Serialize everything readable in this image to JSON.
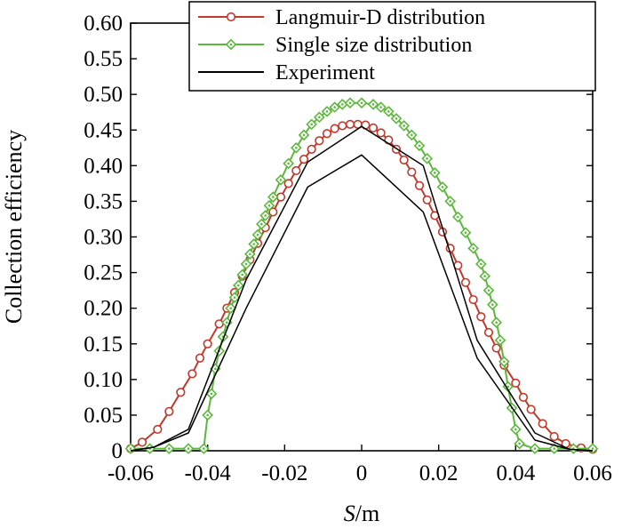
{
  "chart_data": {
    "type": "line",
    "title": "",
    "xlabel_italic": "S",
    "xlabel_unit": "/m",
    "ylabel": "Collection efficiency",
    "xlim": [
      -0.06,
      0.06
    ],
    "ylim": [
      0,
      0.6
    ],
    "x_ticks": [
      -0.06,
      -0.04,
      -0.02,
      0,
      0.02,
      0.04,
      0.06
    ],
    "x_tick_labels": [
      "-0.06",
      "-0.04",
      "-0.02",
      "0",
      "0.02",
      "0.04",
      "0.06"
    ],
    "y_ticks": [
      0,
      0.05,
      0.1,
      0.15,
      0.2,
      0.25,
      0.3,
      0.35,
      0.4,
      0.45,
      0.5,
      0.55,
      0.6
    ],
    "y_tick_labels": [
      "0",
      "0.05",
      "0.10",
      "0.15",
      "0.20",
      "0.25",
      "0.30",
      "0.35",
      "0.40",
      "0.45",
      "0.50",
      "0.55",
      "0.60"
    ],
    "grid": false,
    "legend_position": "top-right",
    "series": [
      {
        "name": "Langmuir-D distribution",
        "color": "#c0392b",
        "marker": "circle",
        "x": [
          -0.06,
          -0.057,
          -0.053,
          -0.05,
          -0.047,
          -0.044,
          -0.042,
          -0.04,
          -0.037,
          -0.035,
          -0.033,
          -0.031,
          -0.029,
          -0.027,
          -0.025,
          -0.023,
          -0.021,
          -0.019,
          -0.017,
          -0.015,
          -0.013,
          -0.011,
          -0.009,
          -0.007,
          -0.005,
          -0.003,
          -0.001,
          0.001,
          0.003,
          0.005,
          0.007,
          0.009,
          0.011,
          0.013,
          0.015,
          0.017,
          0.019,
          0.021,
          0.023,
          0.025,
          0.027,
          0.029,
          0.031,
          0.033,
          0.035,
          0.037,
          0.04,
          0.042,
          0.044,
          0.047,
          0.05,
          0.053,
          0.057,
          0.06
        ],
        "y": [
          0.003,
          0.012,
          0.03,
          0.055,
          0.082,
          0.108,
          0.13,
          0.15,
          0.178,
          0.2,
          0.222,
          0.245,
          0.268,
          0.291,
          0.313,
          0.335,
          0.356,
          0.375,
          0.393,
          0.409,
          0.423,
          0.435,
          0.445,
          0.452,
          0.456,
          0.458,
          0.458,
          0.457,
          0.453,
          0.446,
          0.436,
          0.423,
          0.408,
          0.391,
          0.372,
          0.352,
          0.33,
          0.307,
          0.284,
          0.26,
          0.236,
          0.212,
          0.188,
          0.166,
          0.144,
          0.12,
          0.095,
          0.075,
          0.058,
          0.038,
          0.02,
          0.01,
          0.004,
          0.002
        ]
      },
      {
        "name": "Single size distribution",
        "color": "#5cb83c",
        "marker": "diamond",
        "x": [
          -0.06,
          -0.055,
          -0.05,
          -0.045,
          -0.041,
          -0.04,
          -0.039,
          -0.038,
          -0.037,
          -0.036,
          -0.035,
          -0.034,
          -0.033,
          -0.032,
          -0.031,
          -0.03,
          -0.029,
          -0.028,
          -0.027,
          -0.026,
          -0.025,
          -0.024,
          -0.023,
          -0.021,
          -0.019,
          -0.017,
          -0.015,
          -0.013,
          -0.011,
          -0.009,
          -0.007,
          -0.005,
          -0.003,
          0.0,
          0.003,
          0.005,
          0.007,
          0.009,
          0.011,
          0.013,
          0.015,
          0.017,
          0.019,
          0.021,
          0.023,
          0.025,
          0.027,
          0.029,
          0.031,
          0.032,
          0.033,
          0.034,
          0.035,
          0.036,
          0.037,
          0.038,
          0.039,
          0.04,
          0.041,
          0.045,
          0.05,
          0.055,
          0.06
        ],
        "y": [
          0.003,
          0.003,
          0.003,
          0.003,
          0.003,
          0.05,
          0.08,
          0.115,
          0.14,
          0.16,
          0.18,
          0.2,
          0.215,
          0.232,
          0.247,
          0.262,
          0.276,
          0.29,
          0.303,
          0.318,
          0.33,
          0.344,
          0.356,
          0.38,
          0.403,
          0.425,
          0.443,
          0.458,
          0.468,
          0.476,
          0.482,
          0.486,
          0.488,
          0.488,
          0.486,
          0.482,
          0.476,
          0.466,
          0.456,
          0.443,
          0.428,
          0.41,
          0.39,
          0.37,
          0.35,
          0.328,
          0.306,
          0.284,
          0.262,
          0.245,
          0.225,
          0.205,
          0.18,
          0.155,
          0.125,
          0.09,
          0.06,
          0.03,
          0.01,
          0.003,
          0.003,
          0.003,
          0.003
        ]
      },
      {
        "name": "Experiment",
        "color": "#000000",
        "marker": "none",
        "x": [
          -0.06,
          -0.054,
          -0.045,
          -0.03,
          -0.014,
          0.0,
          0.016,
          0.03,
          0.045,
          0.054,
          0.06
        ],
        "y": [
          0.0,
          0.005,
          0.03,
          0.24,
          0.405,
          0.455,
          0.4,
          0.155,
          0.025,
          0.002,
          0.0
        ]
      },
      {
        "name": "",
        "color": "#000000",
        "marker": "none",
        "x": [
          -0.06,
          -0.054,
          -0.045,
          -0.03,
          -0.014,
          0.0,
          0.016,
          0.03,
          0.045,
          0.054,
          0.06
        ],
        "y": [
          0.0,
          0.005,
          0.025,
          0.2,
          0.37,
          0.415,
          0.335,
          0.13,
          0.015,
          0.002,
          0.0
        ]
      }
    ]
  }
}
